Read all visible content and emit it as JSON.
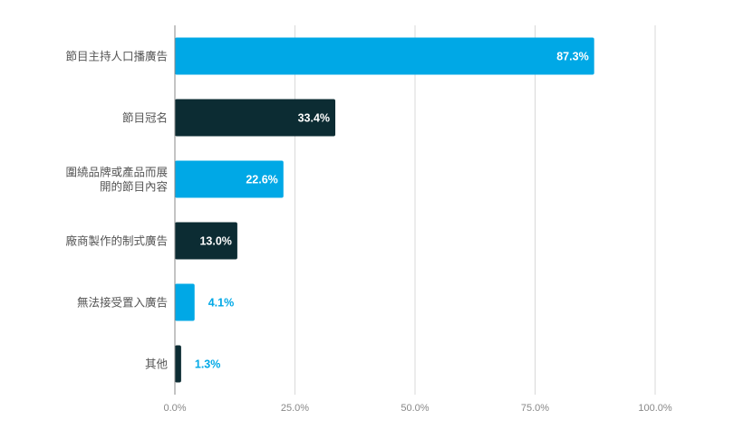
{
  "chart_data": {
    "type": "bar",
    "orientation": "horizontal",
    "categories": [
      [
        "節目主持人口播廣告"
      ],
      [
        "節目冠名"
      ],
      [
        "圍繞品牌或產品而展",
        "開的節目內容"
      ],
      [
        "廠商製作的制式廣告"
      ],
      [
        "無法接受置入廣告"
      ],
      [
        "其他"
      ]
    ],
    "values": [
      87.3,
      33.4,
      22.6,
      13.0,
      4.1,
      1.3
    ],
    "value_labels": [
      "87.3%",
      "33.4%",
      "22.6%",
      "13.0%",
      "4.1%",
      "1.3%"
    ],
    "x_ticks": [
      "0.0%",
      "25.0%",
      "50.0%",
      "75.0%",
      "100.0%"
    ],
    "xlim": [
      0,
      100
    ],
    "grid": true,
    "colors": [
      "#00a8e6",
      "#0c2c33",
      "#00a8e6",
      "#0c2c33",
      "#00a8e6",
      "#0c2c33"
    ],
    "label_inside_color": "#ffffff",
    "label_outside_color": "#00a8e6",
    "axis_color": "#888888",
    "grid_color": "#d9d9d9"
  }
}
